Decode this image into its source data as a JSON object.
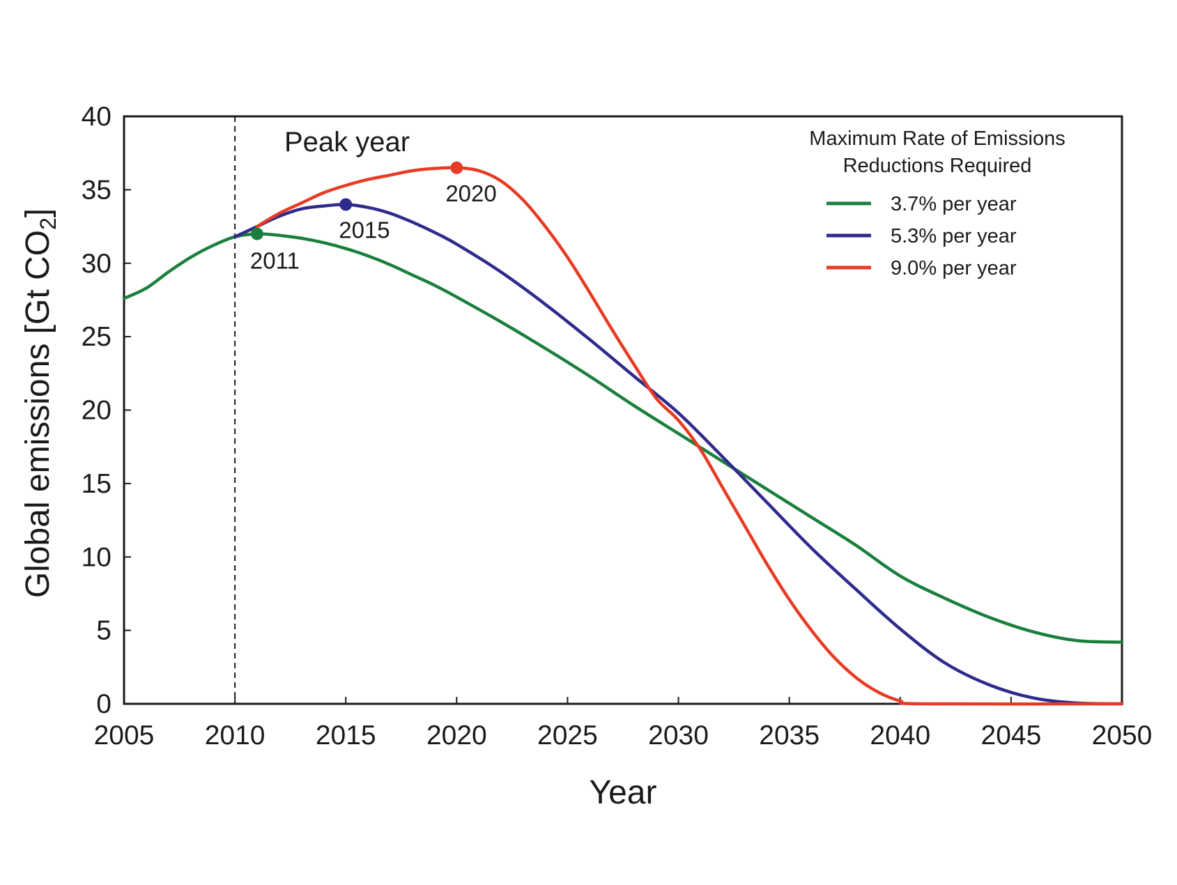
{
  "chart_data": {
    "type": "line",
    "xlabel": "Year",
    "ylabel": "Global emissions [Gt CO",
    "ylabel_subscript": "2",
    "ylabel_suffix": "]",
    "xlim": [
      2005,
      2050
    ],
    "ylim": [
      0,
      40
    ],
    "x_ticks": [
      "2005",
      "2010",
      "2015",
      "2020",
      "2025",
      "2030",
      "2035",
      "2040",
      "2045",
      "2050"
    ],
    "y_ticks": [
      "0",
      "5",
      "10",
      "15",
      "20",
      "25",
      "30",
      "35",
      "40"
    ],
    "grid": false,
    "reference_line": {
      "x": 2010,
      "style": "dashed"
    },
    "annotation": "Peak year",
    "legend": {
      "title_line1": "Maximum Rate of Emissions",
      "title_line2": "Reductions Required",
      "placement": "top-right"
    },
    "series": [
      {
        "name": "3.7% per year",
        "color": "#1a7f3c",
        "peak": {
          "x": 2011,
          "y": 32.0,
          "label": "2011"
        },
        "points": [
          [
            2005,
            27.6
          ],
          [
            2006,
            28.3
          ],
          [
            2007,
            29.4
          ],
          [
            2008,
            30.4
          ],
          [
            2009,
            31.2
          ],
          [
            2010,
            31.8
          ],
          [
            2011,
            32.0
          ],
          [
            2012,
            31.9
          ],
          [
            2013,
            31.7
          ],
          [
            2014,
            31.4
          ],
          [
            2015,
            31.0
          ],
          [
            2016,
            30.5
          ],
          [
            2017,
            29.9
          ],
          [
            2018,
            29.2
          ],
          [
            2019,
            28.5
          ],
          [
            2020,
            27.7
          ],
          [
            2022,
            26.0
          ],
          [
            2024,
            24.2
          ],
          [
            2026,
            22.3
          ],
          [
            2028,
            20.3
          ],
          [
            2030,
            18.4
          ],
          [
            2032,
            16.5
          ],
          [
            2034,
            14.6
          ],
          [
            2036,
            12.7
          ],
          [
            2038,
            10.8
          ],
          [
            2040,
            8.7
          ],
          [
            2042,
            7.2
          ],
          [
            2044,
            5.9
          ],
          [
            2046,
            4.9
          ],
          [
            2048,
            4.3
          ],
          [
            2050,
            4.2
          ]
        ]
      },
      {
        "name": "5.3% per year",
        "color": "#2e2b8c",
        "peak": {
          "x": 2015,
          "y": 34.0,
          "label": "2015"
        },
        "points": [
          [
            2010,
            31.8
          ],
          [
            2011,
            32.5
          ],
          [
            2012,
            33.2
          ],
          [
            2013,
            33.7
          ],
          [
            2014,
            33.9
          ],
          [
            2015,
            34.0
          ],
          [
            2016,
            33.8
          ],
          [
            2017,
            33.4
          ],
          [
            2018,
            32.8
          ],
          [
            2019,
            32.1
          ],
          [
            2020,
            31.3
          ],
          [
            2022,
            29.4
          ],
          [
            2024,
            27.2
          ],
          [
            2026,
            24.8
          ],
          [
            2028,
            22.3
          ],
          [
            2030,
            19.8
          ],
          [
            2032,
            16.8
          ],
          [
            2034,
            13.7
          ],
          [
            2036,
            10.6
          ],
          [
            2038,
            7.8
          ],
          [
            2040,
            5.1
          ],
          [
            2042,
            2.8
          ],
          [
            2044,
            1.3
          ],
          [
            2046,
            0.4
          ],
          [
            2048,
            0.05
          ],
          [
            2050,
            0.0
          ]
        ]
      },
      {
        "name": "9.0% per year",
        "color": "#e63b24",
        "peak": {
          "x": 2020,
          "y": 36.5,
          "label": "2020"
        },
        "points": [
          [
            2011,
            32.5
          ],
          [
            2012,
            33.4
          ],
          [
            2013,
            34.1
          ],
          [
            2014,
            34.8
          ],
          [
            2015,
            35.3
          ],
          [
            2016,
            35.7
          ],
          [
            2017,
            36.0
          ],
          [
            2018,
            36.3
          ],
          [
            2019,
            36.45
          ],
          [
            2020,
            36.5
          ],
          [
            2021,
            36.3
          ],
          [
            2022,
            35.6
          ],
          [
            2023,
            34.3
          ],
          [
            2024,
            32.5
          ],
          [
            2025,
            30.4
          ],
          [
            2026,
            28.0
          ],
          [
            2027,
            25.5
          ],
          [
            2028,
            23.1
          ],
          [
            2029,
            20.8
          ],
          [
            2030,
            19.3
          ],
          [
            2031,
            17.3
          ],
          [
            2032,
            14.7
          ],
          [
            2033,
            12.1
          ],
          [
            2034,
            9.5
          ],
          [
            2035,
            7.1
          ],
          [
            2036,
            5.0
          ],
          [
            2037,
            3.2
          ],
          [
            2038,
            1.8
          ],
          [
            2039,
            0.8
          ],
          [
            2040,
            0.2
          ],
          [
            2041,
            0.0
          ],
          [
            2050,
            0.0
          ]
        ]
      }
    ]
  }
}
